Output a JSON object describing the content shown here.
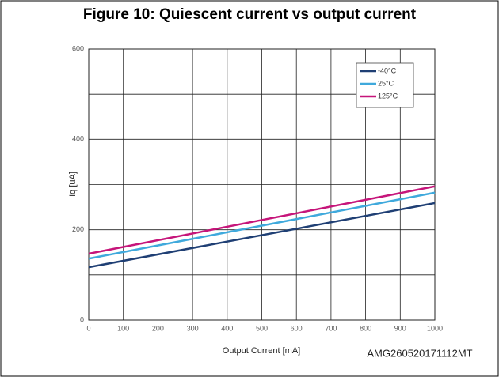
{
  "chart_data": {
    "type": "line",
    "title": "Figure 10: Quiescent current vs output current",
    "xlabel": "Output Current [mA]",
    "ylabel": "Iq [uA]",
    "annotation": "AMG260520171112MT",
    "x": [
      0,
      1000
    ],
    "series": [
      {
        "name": "-40°C",
        "color": "#1f3f74",
        "values": [
          117,
          259
        ]
      },
      {
        "name": "25°C",
        "color": "#3fa9dc",
        "values": [
          136,
          282
        ]
      },
      {
        "name": "125°C",
        "color": "#c6157a",
        "values": [
          147,
          296
        ]
      }
    ],
    "xlim": [
      0,
      1000
    ],
    "xticks": [
      0,
      100,
      200,
      300,
      400,
      500,
      600,
      700,
      800,
      900,
      1000
    ],
    "ylim": [
      0,
      600
    ],
    "yticks": [
      0,
      200,
      400,
      600
    ],
    "minor_yticks": [
      100,
      300,
      500
    ],
    "grid": true,
    "legend": "upper right"
  }
}
